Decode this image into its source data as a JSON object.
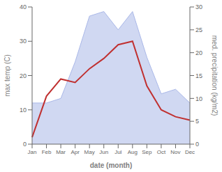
{
  "chart_data": {
    "type": "line",
    "xlabel": "date (month)",
    "ylabel": "max temp (C)",
    "y2label": "med. precipitation (kg/m2)",
    "categories": [
      "Jan",
      "Feb",
      "Mar",
      "Apr",
      "May",
      "Jun",
      "Jul",
      "Aug",
      "Sep",
      "Oct",
      "Nov",
      "Dec"
    ],
    "series": [
      {
        "type": "area",
        "color": "#aab8e8",
        "axis": "y2",
        "values": [
          9,
          9,
          10,
          18,
          28,
          29,
          25,
          29,
          19,
          11,
          12,
          9
        ]
      },
      {
        "type": "line",
        "color": "#c03030",
        "axis": "y",
        "values": [
          2,
          14,
          19,
          18,
          22,
          25,
          29,
          30,
          17,
          10,
          8,
          7
        ]
      }
    ],
    "ylim": [
      0,
      40
    ],
    "yticks": [
      0,
      10,
      20,
      30,
      40
    ],
    "y2lim": [
      0,
      30
    ],
    "y2ticks": [
      0,
      5,
      10,
      15,
      20,
      25,
      30
    ],
    "grid": false
  }
}
